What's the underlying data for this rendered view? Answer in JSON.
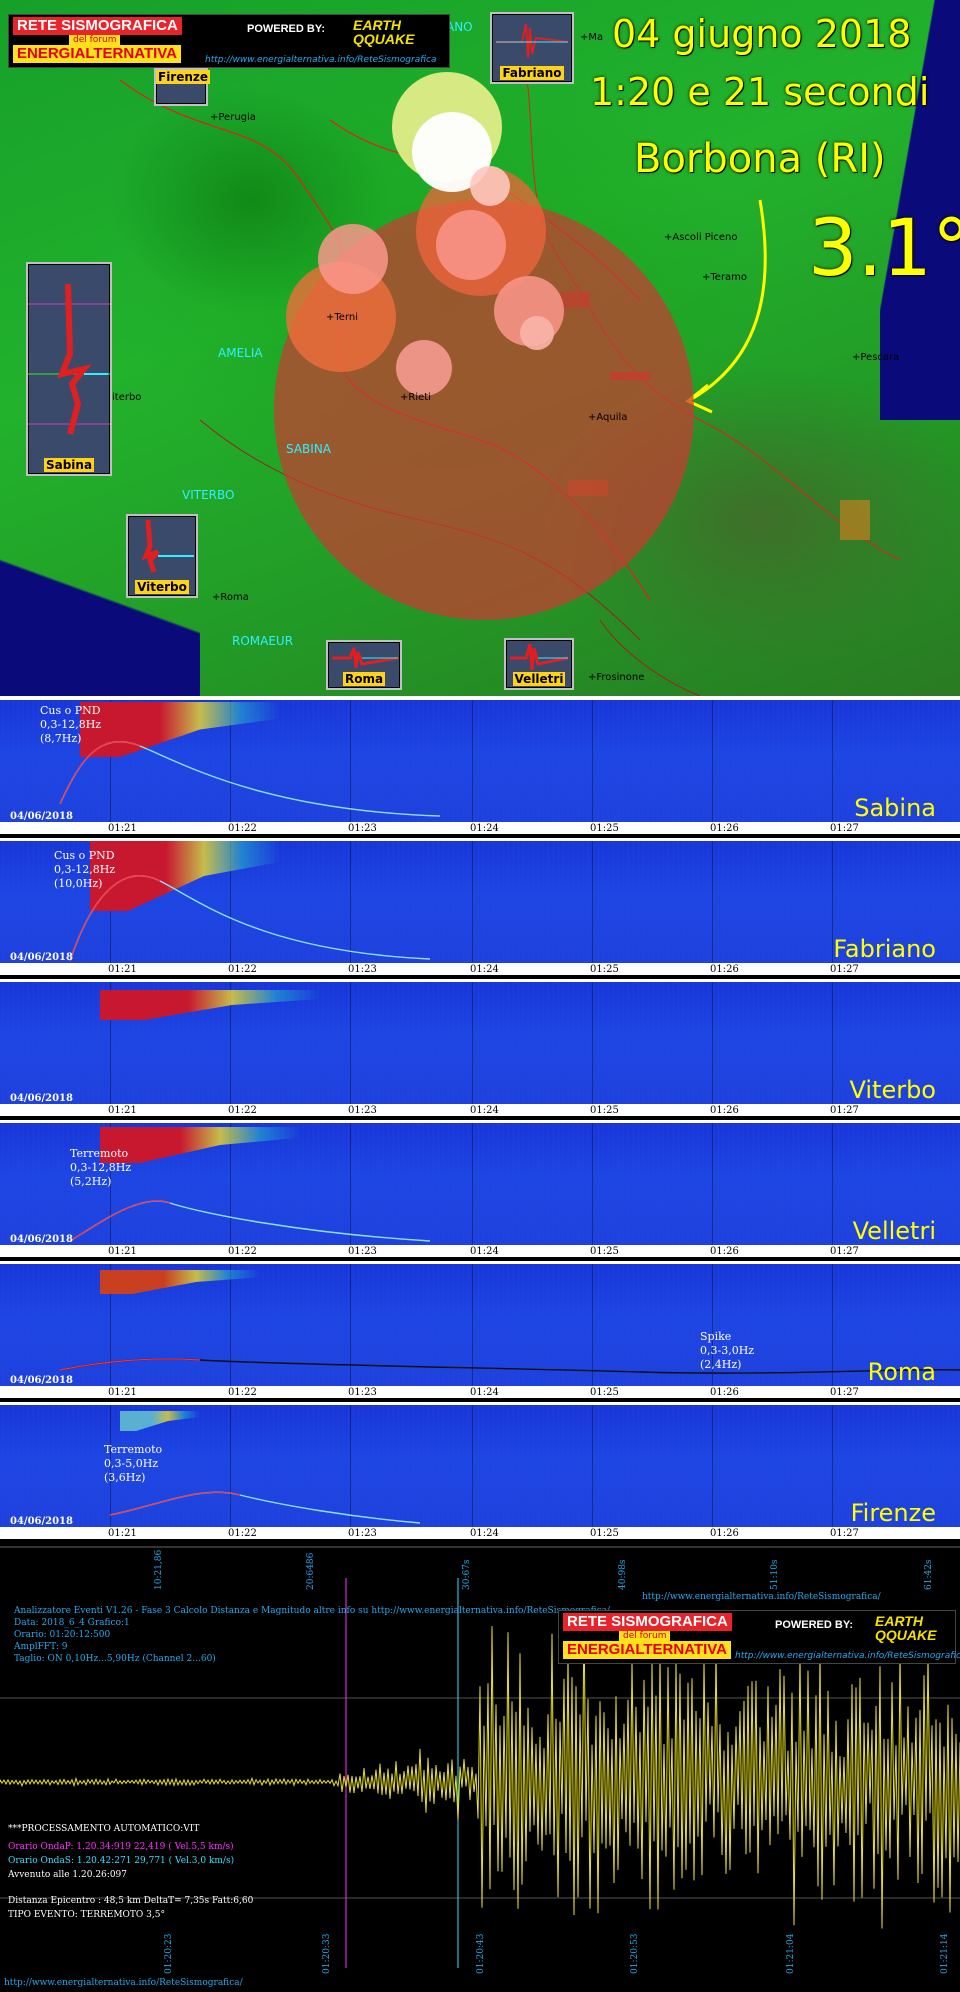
{
  "header": {
    "date": "04 giugno 2018",
    "time": "1:20 e 21 secondi",
    "place": "Borbona (RI)",
    "magnitude": "3.1°"
  },
  "logo": {
    "line1": "RETE SISMOGRAFICA",
    "line2": "del forum",
    "line3": "ENERGIALTERNATIVA",
    "powered": "POWERED BY:",
    "earth": "EARTH",
    "quake": "QQUAKE",
    "url": "http://www.energialternativa.info/ReteSismografica"
  },
  "map": {
    "cities": [
      {
        "name": "+Perugia"
      },
      {
        "name": "+Terni"
      },
      {
        "name": "+Rieti"
      },
      {
        "name": "+Aquila"
      },
      {
        "name": "+Ascoli Piceno"
      },
      {
        "name": "+Teramo"
      },
      {
        "name": "+Pescara"
      },
      {
        "name": "+Roma"
      },
      {
        "name": "+Frosinone"
      },
      {
        "name": "+Ma"
      },
      {
        "name": "iterbo"
      }
    ],
    "stations": [
      "AMELIA",
      "SABINA",
      "VITERBO",
      "ROMAEUR",
      "ANO"
    ],
    "thumbs": [
      "Firenze",
      "Fabriano",
      "Sabina",
      "Viterbo",
      "Roma",
      "Velletri"
    ]
  },
  "panels": [
    {
      "name": "Sabina",
      "date": "04/06/2018",
      "note": "Cus o PND\n0,3-12,8Hz\n(8,7Hz)"
    },
    {
      "name": "Fabriano",
      "date": "04/06/2018",
      "note": "Cus o PND\n0,3-12,8Hz\n(10,0Hz)"
    },
    {
      "name": "Viterbo",
      "date": "04/06/2018",
      "note": ""
    },
    {
      "name": "Velletri",
      "date": "04/06/2018",
      "note": "Terremoto\n0,3-12,8Hz\n(5,2Hz)"
    },
    {
      "name": "Roma",
      "date": "04/06/2018",
      "note": "Spike\n0,3-3,0Hz\n(2,4Hz)"
    },
    {
      "name": "Firenze",
      "date": "04/06/2018",
      "note": "Terremoto\n0,3-5,0Hz\n(3,6Hz)"
    }
  ],
  "ticks": [
    "01:21",
    "01:22",
    "01:23",
    "01:24",
    "01:25",
    "01:26",
    "01:27"
  ],
  "seismo": {
    "header_line": "Analizzatore Eventi V1.26 - Fase 3 Calcolo Distanza e Magnitudo altre info su http://www.energialternativa.info/ReteSismografica/",
    "data": "Data: 2018_6_4 Grafico:1",
    "orario": "Orario: 01:20:12:500",
    "ampl": "AmplFFT: 9",
    "taglio": "Taglio: ON 0,10Hz...5,90Hz       (Channel 2...60)",
    "url_top": "http://www.energialternativa.info/ReteSismografica/",
    "proc": "***PROCESSAMENTO AUTOMATICO:VIT",
    "ondaP": "Orario OndaP: 1.20.34:919  22,419 ( Vel.5,5 km/s)",
    "ondaS": "Orario OndaS: 1.20.42:271  29,771 ( Vel.3,0 km/s)",
    "avvenuto": "Avvenuto alle 1.20.26:097",
    "distanza": "Distanza Epicentro : 48,5 km DeltaT= 7,35s  Fatt:6,60",
    "tipo": "TIPO EVENTO: TERREMOTO 3,5°",
    "url_bottom": "http://www.energialternativa.info/ReteSismografica/",
    "top_times": [
      "10:21,86",
      "20:6486",
      "30:67s",
      "40:98s",
      "51:10s",
      "61:42s"
    ],
    "bottom_times": [
      "01:20:23",
      "01:20:33",
      "01:20:43",
      "01:20:53",
      "01:21:04",
      "01:21:14"
    ]
  },
  "colors": {
    "accent_yellow": "#ffff00",
    "cyan": "#2ff0ff",
    "red": "#e8232a"
  }
}
